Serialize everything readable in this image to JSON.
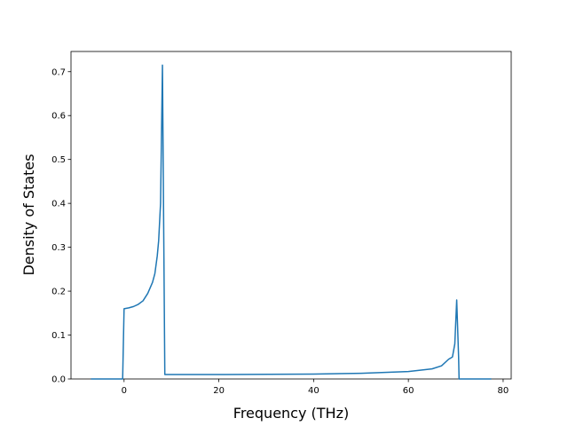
{
  "chart_data": {
    "type": "line",
    "xlabel": "Frequency (THz)",
    "ylabel": "Density of States",
    "x": [
      -7,
      -0.3,
      0,
      1,
      2,
      3,
      4,
      5,
      6,
      6.5,
      7,
      7.3,
      7.7,
      8.1,
      8.6,
      20,
      40,
      50,
      60,
      65,
      67,
      68.5,
      69.3,
      69.8,
      70.2,
      70.6,
      70.7,
      77.5
    ],
    "values": [
      0,
      0,
      0.16,
      0.162,
      0.165,
      0.17,
      0.178,
      0.195,
      0.22,
      0.24,
      0.28,
      0.315,
      0.4,
      0.715,
      0.01,
      0.01,
      0.011,
      0.013,
      0.017,
      0.023,
      0.03,
      0.045,
      0.05,
      0.08,
      0.18,
      0.05,
      0,
      0
    ],
    "color": "#1f77b4",
    "xlim": [
      -11.2,
      81.7
    ],
    "ylim": [
      0,
      0.746
    ],
    "xticks": [
      0,
      20,
      40,
      60,
      80
    ],
    "yticks": [
      {
        "value": 0,
        "label": "0.0"
      },
      0.1,
      0.2,
      0.3,
      0.4,
      0.5,
      0.6,
      0.7
    ]
  }
}
